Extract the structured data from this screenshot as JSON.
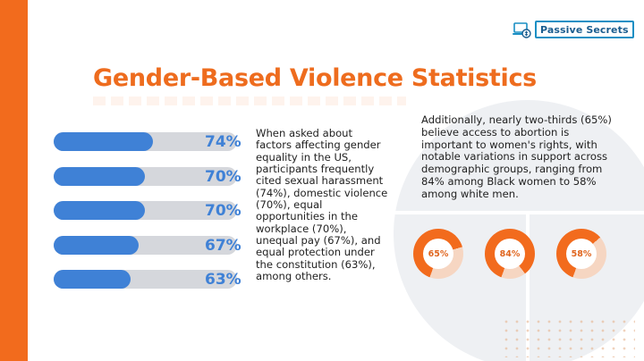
{
  "brand": {
    "name": "Passive Secrets"
  },
  "colors": {
    "accent": "#f26b1d",
    "bar": "#3f81d6",
    "track": "#d5d7dc",
    "donut": "#f26b1d",
    "donut_track": "#f6d6c2"
  },
  "title": "Gender-Based Violence Statistics",
  "left_text": "When asked about factors affecting gender equality in the US, participants frequently cited sexual harassment (74%), domestic violence (70%), equal opportunities in the workplace (70%), unequal pay (67%), and equal protection under the constitution (63%), among others.",
  "right_text": "Additionally, nearly two-thirds (65%) believe access to abortion is important to women's rights, with notable variations in support across demographic groups, ranging from 84% among Black women to 58% among white men.",
  "chart_data": [
    {
      "type": "bar",
      "orientation": "horizontal",
      "values": [
        74,
        70,
        70,
        67,
        63
      ],
      "data_labels": [
        "74%",
        "70%",
        "70%",
        "67%",
        "63%"
      ],
      "xlim": [
        0,
        100
      ]
    },
    {
      "type": "pie",
      "variant": "donut",
      "values": [
        65,
        84,
        58
      ],
      "data_labels": [
        "65%",
        "84%",
        "58%"
      ]
    }
  ]
}
